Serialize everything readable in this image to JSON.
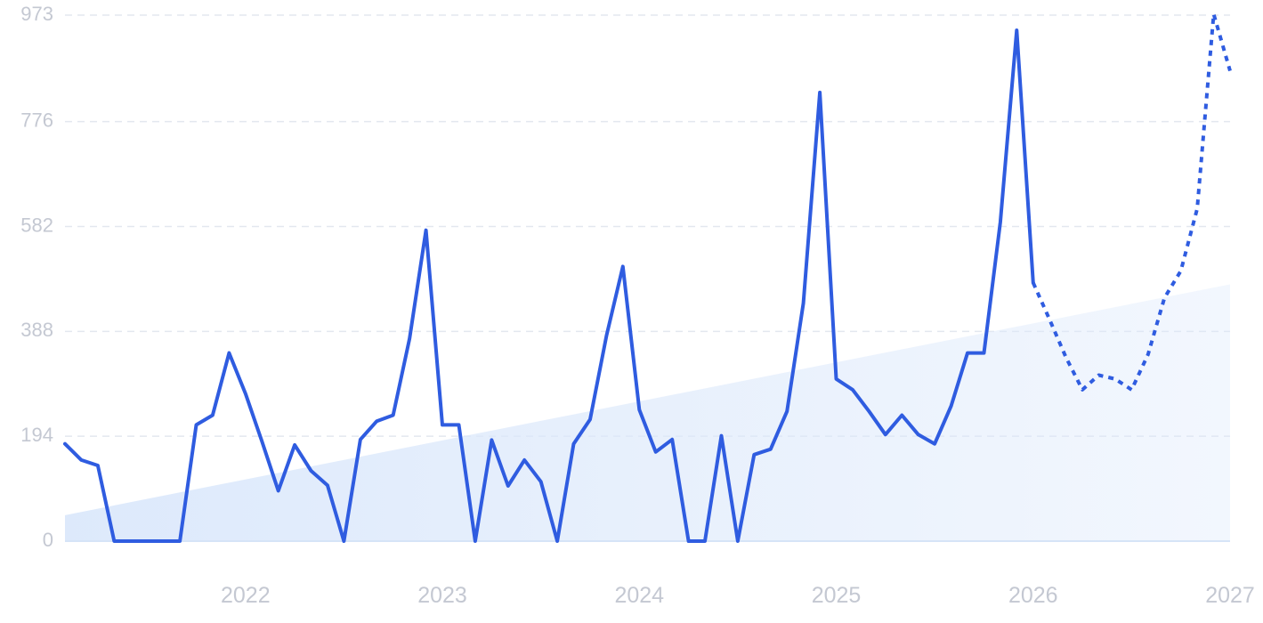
{
  "chart_data": {
    "type": "line",
    "title": "",
    "xlabel": "",
    "ylabel": "",
    "ylim": [
      0,
      973
    ],
    "y_ticks": [
      0,
      194,
      388,
      582,
      776,
      973
    ],
    "x_tick_labels": [
      "2022",
      "2023",
      "2024",
      "2025",
      "2026",
      "2027"
    ],
    "x_tick_years": [
      2022,
      2023,
      2024,
      2025,
      2026,
      2027
    ],
    "grid": true,
    "colors": {
      "line": "#2f5ce0",
      "trend_fill": "#dbe8fb"
    },
    "series": [
      {
        "style": "solid",
        "points": [
          [
            "2021-02",
            180
          ],
          [
            "2021-03",
            150
          ],
          [
            "2021-04",
            140
          ],
          [
            "2021-05",
            0
          ],
          [
            "2021-06",
            0
          ],
          [
            "2021-07",
            0
          ],
          [
            "2021-08",
            0
          ],
          [
            "2021-09",
            0
          ],
          [
            "2021-10",
            215
          ],
          [
            "2021-11",
            233
          ],
          [
            "2021-12",
            348
          ],
          [
            "2022-01",
            273
          ],
          [
            "2022-02",
            185
          ],
          [
            "2022-03",
            93
          ],
          [
            "2022-04",
            178
          ],
          [
            "2022-05",
            130
          ],
          [
            "2022-06",
            103
          ],
          [
            "2022-07",
            0
          ],
          [
            "2022-08",
            188
          ],
          [
            "2022-09",
            222
          ],
          [
            "2022-10",
            233
          ],
          [
            "2022-11",
            375
          ],
          [
            "2022-12",
            575
          ],
          [
            "2023-01",
            215
          ],
          [
            "2023-02",
            215
          ],
          [
            "2023-03",
            0
          ],
          [
            "2023-04",
            187
          ],
          [
            "2023-05",
            102
          ],
          [
            "2023-06",
            150
          ],
          [
            "2023-07",
            110
          ],
          [
            "2023-08",
            0
          ],
          [
            "2023-09",
            180
          ],
          [
            "2023-10",
            225
          ],
          [
            "2023-11",
            380
          ],
          [
            "2023-12",
            508
          ],
          [
            "2024-01",
            243
          ],
          [
            "2024-02",
            165
          ],
          [
            "2024-03",
            188
          ],
          [
            "2024-04",
            0
          ],
          [
            "2024-05",
            0
          ],
          [
            "2024-06",
            195
          ],
          [
            "2024-07",
            0
          ],
          [
            "2024-08",
            160
          ],
          [
            "2024-09",
            170
          ],
          [
            "2024-10",
            240
          ],
          [
            "2024-11",
            440
          ],
          [
            "2024-12",
            830
          ],
          [
            "2025-01",
            300
          ],
          [
            "2025-02",
            280
          ],
          [
            "2025-03",
            240
          ],
          [
            "2025-04",
            197
          ],
          [
            "2025-05",
            233
          ],
          [
            "2025-06",
            197
          ],
          [
            "2025-07",
            180
          ],
          [
            "2025-08",
            250
          ],
          [
            "2025-09",
            348
          ],
          [
            "2025-10",
            348
          ],
          [
            "2025-11",
            590
          ],
          [
            "2025-12",
            945
          ],
          [
            "2026-01",
            478
          ]
        ]
      },
      {
        "style": "dotted",
        "points": [
          [
            "2026-01",
            478
          ],
          [
            "2026-02",
            410
          ],
          [
            "2026-03",
            340
          ],
          [
            "2026-04",
            280
          ],
          [
            "2026-05",
            307
          ],
          [
            "2026-06",
            300
          ],
          [
            "2026-07",
            280
          ],
          [
            "2026-08",
            345
          ],
          [
            "2026-09",
            450
          ],
          [
            "2026-10",
            500
          ],
          [
            "2026-11",
            615
          ],
          [
            "2026-12",
            975
          ],
          [
            "2027-01",
            870
          ]
        ]
      }
    ],
    "trend": {
      "start": [
        "2021-02",
        48
      ],
      "end": [
        "2027-01",
        475
      ]
    }
  }
}
